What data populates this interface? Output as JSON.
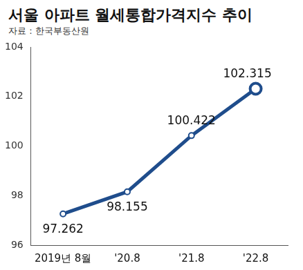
{
  "chart_data": {
    "type": "line",
    "title": "서울 아파트 월세통합가격지수 추이",
    "subtitle": "자료 : 한국부동산원",
    "categories": [
      "2019년 8월",
      "'20.8",
      "'21.8",
      "'22.8"
    ],
    "values": [
      97.262,
      98.155,
      100.422,
      102.315
    ],
    "color": "#1f4d8c",
    "marker": "circle",
    "ylim": [
      96,
      104
    ],
    "yticks": [
      96,
      98,
      100,
      102,
      104
    ],
    "grid": false,
    "data_labels": true
  }
}
